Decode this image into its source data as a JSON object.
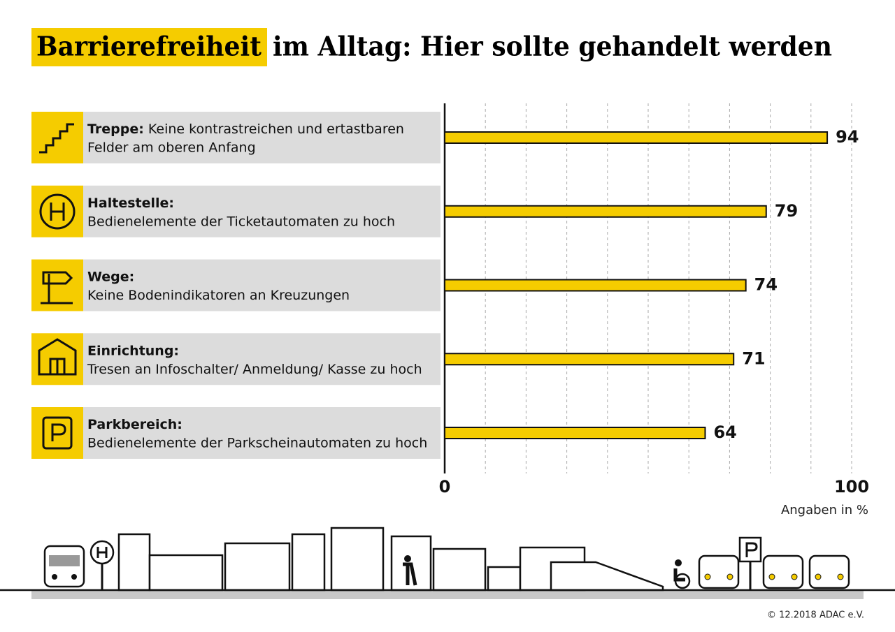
{
  "chart_data": {
    "type": "bar",
    "title_highlight": "Barrierefreiheit",
    "title": "im Alltag: Hier sollte gehandelt werden",
    "categories": [
      "Treppe:",
      "Haltestelle:",
      "Wege:",
      "Einrichtung:",
      "Parkbereich:"
    ],
    "descriptions": [
      [
        "Keine kontrastreichen und ertastbaren",
        "Felder am oberen Anfang"
      ],
      [
        "Bedienelemente der Ticketautomaten zu hoch"
      ],
      [
        "Keine Bodenindikatoren an Kreuzungen"
      ],
      [
        "Tresen an Infoschalter/ Anmeldung/ Kasse zu hoch"
      ],
      [
        "Bedienelemente der Parkscheinautomaten zu hoch"
      ]
    ],
    "values": [
      94,
      79,
      74,
      71,
      64
    ],
    "color": "#f5cc00",
    "xlim": [
      0,
      100
    ],
    "xticks": [
      0,
      100
    ],
    "grid_xticks": [
      10,
      20,
      30,
      40,
      50,
      60,
      70,
      80,
      90,
      100
    ],
    "xlabel": "Angaben in %",
    "footer": "© 12.2018 ADAC e.V."
  }
}
